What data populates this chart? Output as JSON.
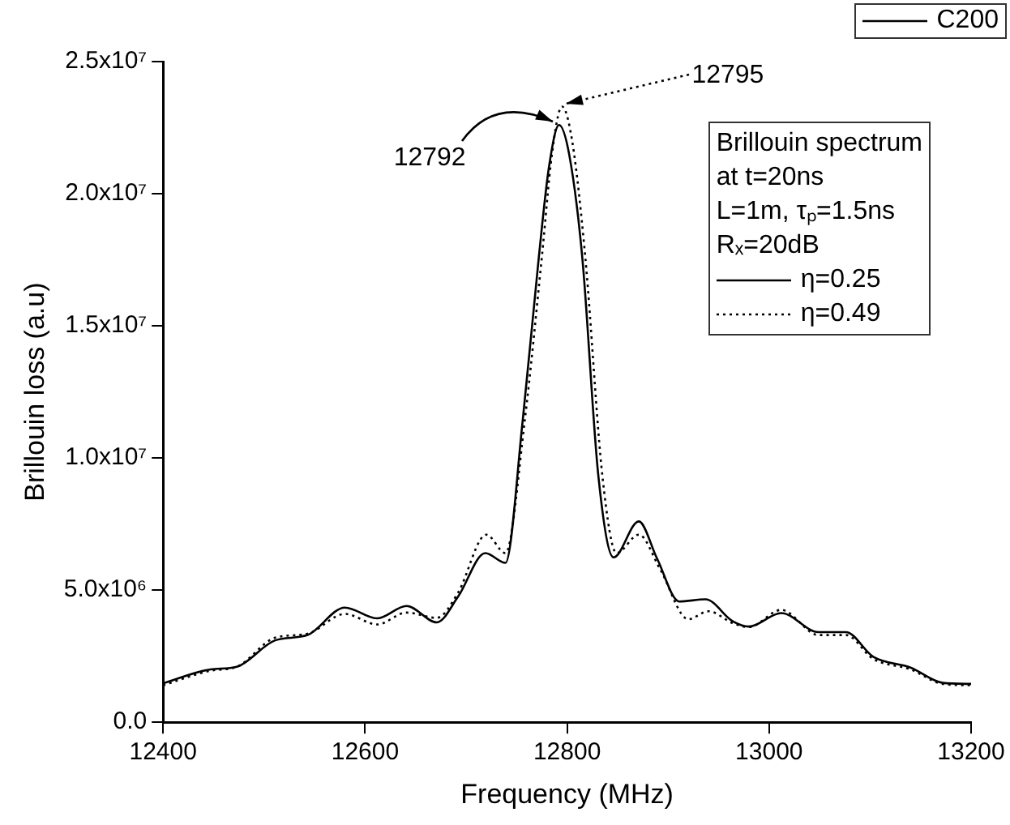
{
  "chart_data": {
    "type": "line",
    "xlabel": "Frequency (MHz)",
    "ylabel": "Brillouin loss (a.u)",
    "legend_title": "Brillouin spectrum\nat t=20ns\nL=1m, τₚ=1.5ns\nRₓ=20dB",
    "legend": "top right",
    "grid": false,
    "marker": "none",
    "xlim": [
      12400,
      13200
    ],
    "xticks": [
      12400,
      12600,
      12800,
      13000,
      13200
    ],
    "ylim": [
      0,
      25000000
    ],
    "yticks": [
      {
        "value": 0,
        "label": "0.0"
      },
      {
        "value": 5000000,
        "label": "5.0x10⁶"
      },
      {
        "value": 10000000,
        "label": "1.0x10⁷"
      },
      {
        "value": 15000000,
        "label": "1.5x10⁷"
      },
      {
        "value": 20000000,
        "label": "2.0x10⁷"
      },
      {
        "value": 25000000,
        "label": "2.5x10⁷"
      }
    ],
    "series": [
      {
        "name": "η=0.25",
        "color": "#000000",
        "line_style": "solid",
        "x": [
          12400,
          12447,
          12473,
          12511,
          12543,
          12580,
          12612,
          12641,
          12671,
          12692,
          12719,
          12739,
          12756,
          12772,
          12782,
          12792,
          12802,
          12815,
          12831,
          12846,
          12871,
          12889,
          12911,
          12937,
          12964,
          12980,
          13012,
          13049,
          13076,
          13103,
          13140,
          13172,
          13200
        ],
        "values": [
          1470000,
          2000000,
          2100000,
          3100000,
          3300000,
          4340000,
          3930000,
          4400000,
          3780000,
          4750000,
          6400000,
          6030000,
          11400000,
          17600000,
          21000000,
          22600000,
          21500000,
          17600000,
          9300000,
          6240000,
          7600000,
          6200000,
          4570000,
          4650000,
          3820000,
          3620000,
          4130000,
          3410000,
          3410000,
          2480000,
          2070000,
          1490000,
          1450000
        ]
      },
      {
        "name": "η=0.49",
        "color": "#000000",
        "line_style": "dotted",
        "x": [
          12400,
          12447,
          12473,
          12511,
          12543,
          12580,
          12612,
          12641,
          12671,
          12692,
          12720,
          12739,
          12758,
          12775,
          12785,
          12795,
          12805,
          12818,
          12835,
          12849,
          12871,
          12892,
          12920,
          12940,
          12964,
          12980,
          13012,
          13049,
          13076,
          13103,
          13140,
          13172,
          13200
        ],
        "values": [
          1400000,
          1950000,
          2100000,
          3200000,
          3350000,
          4100000,
          3700000,
          4150000,
          3950000,
          4900000,
          7100000,
          6400000,
          11400000,
          17600000,
          21500000,
          23300000,
          22000000,
          17600000,
          9300000,
          6400000,
          7100000,
          5800000,
          3900000,
          4200000,
          3750000,
          3600000,
          4250000,
          3300000,
          3300000,
          2400000,
          2000000,
          1450000,
          1400000
        ]
      }
    ],
    "annotations": [
      {
        "text": "12792",
        "x": 12792,
        "y": 22600000
      },
      {
        "text": "12795",
        "x": 12795,
        "y": 23300000
      },
      "C200"
    ]
  }
}
